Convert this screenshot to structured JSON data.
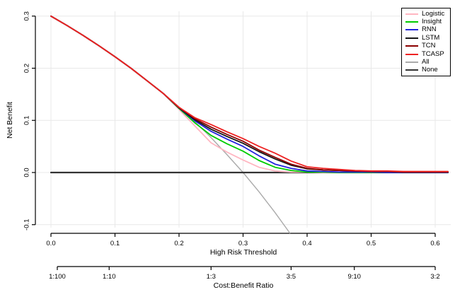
{
  "figure": {
    "background": "#ffffff",
    "grid_color": "#e8e8e8",
    "axis_color": "#000000"
  },
  "chart_data": {
    "type": "line",
    "title": "",
    "xlabel": "High Risk Threshold",
    "ylabel": "Net Benefit",
    "xlim": [
      0,
      0.62
    ],
    "ylim": [
      -0.116,
      0.316
    ],
    "grid": true,
    "legend_position": "top-right",
    "x_ticks": [
      {
        "label": "0.0",
        "value": 0.0
      },
      {
        "label": "0.1",
        "value": 0.1
      },
      {
        "label": "0.2",
        "value": 0.2
      },
      {
        "label": "0.3",
        "value": 0.3
      },
      {
        "label": "0.4",
        "value": 0.4
      },
      {
        "label": "0.5",
        "value": 0.5
      },
      {
        "label": "0.6",
        "value": 0.6
      }
    ],
    "y_ticks": [
      {
        "label": "0.3",
        "value": 0.3
      },
      {
        "label": "0.2",
        "value": 0.2
      },
      {
        "label": "0.1",
        "value": 0.1
      },
      {
        "label": "0.0",
        "value": 0.0
      },
      {
        "label": "-0.1",
        "value": -0.1
      }
    ],
    "secondary_axis": {
      "label": "Cost:Benefit Ratio",
      "ticks": [
        {
          "label": "1:100",
          "value": 0.0099
        },
        {
          "label": "1:10",
          "value": 0.0909
        },
        {
          "label": "1:3",
          "value": 0.25
        },
        {
          "label": "3:5",
          "value": 0.375
        },
        {
          "label": "9:10",
          "value": 0.4737
        },
        {
          "label": "3:2",
          "value": 0.6
        }
      ]
    },
    "series": [
      {
        "name": "Logistic",
        "color": "#FFB6C1",
        "width": 1.8,
        "x": [
          0,
          0.025,
          0.05,
          0.075,
          0.1,
          0.125,
          0.15,
          0.175,
          0.2,
          0.225,
          0.25,
          0.275,
          0.3,
          0.325,
          0.35,
          0.375,
          0.4,
          0.425,
          0.45,
          0.475,
          0.5,
          0.525,
          0.55,
          0.575,
          0.6,
          0.62
        ],
        "y": [
          0.3,
          0.282,
          0.263,
          0.243,
          0.222,
          0.2,
          0.176,
          0.152,
          0.121,
          0.089,
          0.057,
          0.039,
          0.024,
          0.01,
          0.003,
          0.001,
          0.001,
          0,
          0,
          0,
          0,
          0.001,
          0.002,
          0.001,
          0,
          0
        ]
      },
      {
        "name": "Insight",
        "color": "#00CC00",
        "width": 1.8,
        "x": [
          0,
          0.025,
          0.05,
          0.075,
          0.1,
          0.125,
          0.15,
          0.175,
          0.2,
          0.225,
          0.25,
          0.275,
          0.3,
          0.325,
          0.35,
          0.375,
          0.4,
          0.425,
          0.45,
          0.475,
          0.5,
          0.525,
          0.55,
          0.575,
          0.6,
          0.62
        ],
        "y": [
          0.3,
          0.282,
          0.263,
          0.243,
          0.222,
          0.2,
          0.176,
          0.152,
          0.123,
          0.095,
          0.071,
          0.055,
          0.041,
          0.023,
          0.01,
          0.004,
          0.001,
          0.001,
          0,
          0,
          0,
          0,
          0,
          0,
          0,
          0
        ]
      },
      {
        "name": "RNN",
        "color": "#2222DD",
        "width": 1.8,
        "x": [
          0,
          0.025,
          0.05,
          0.075,
          0.1,
          0.125,
          0.15,
          0.175,
          0.2,
          0.225,
          0.25,
          0.275,
          0.3,
          0.325,
          0.35,
          0.375,
          0.4,
          0.425,
          0.45,
          0.475,
          0.5,
          0.525,
          0.55,
          0.575,
          0.6,
          0.62
        ],
        "y": [
          0.3,
          0.282,
          0.263,
          0.243,
          0.222,
          0.2,
          0.176,
          0.152,
          0.124,
          0.099,
          0.079,
          0.064,
          0.05,
          0.032,
          0.016,
          0.008,
          0.003,
          0.002,
          0.001,
          0.001,
          0.001,
          0,
          0,
          0,
          0,
          0
        ]
      },
      {
        "name": "LSTM",
        "color": "#151515",
        "width": 1.8,
        "x": [
          0,
          0.025,
          0.05,
          0.075,
          0.1,
          0.125,
          0.15,
          0.175,
          0.2,
          0.225,
          0.25,
          0.275,
          0.3,
          0.325,
          0.35,
          0.375,
          0.4,
          0.425,
          0.45,
          0.475,
          0.5,
          0.525,
          0.55,
          0.575,
          0.6,
          0.62
        ],
        "y": [
          0.3,
          0.282,
          0.263,
          0.243,
          0.222,
          0.2,
          0.176,
          0.152,
          0.124,
          0.101,
          0.083,
          0.069,
          0.056,
          0.04,
          0.026,
          0.014,
          0.007,
          0.005,
          0.004,
          0.003,
          0.002,
          0.002,
          0.001,
          0.001,
          0.001,
          0.001
        ]
      },
      {
        "name": "TCN",
        "color": "#8B0000",
        "width": 1.8,
        "x": [
          0,
          0.025,
          0.05,
          0.075,
          0.1,
          0.125,
          0.15,
          0.175,
          0.2,
          0.225,
          0.25,
          0.275,
          0.3,
          0.325,
          0.35,
          0.375,
          0.4,
          0.425,
          0.45,
          0.475,
          0.5,
          0.525,
          0.55,
          0.575,
          0.6,
          0.62
        ],
        "y": [
          0.3,
          0.282,
          0.263,
          0.243,
          0.222,
          0.2,
          0.176,
          0.152,
          0.125,
          0.103,
          0.087,
          0.073,
          0.06,
          0.043,
          0.029,
          0.016,
          0.008,
          0.005,
          0.004,
          0.003,
          0.002,
          0.002,
          0.001,
          0.001,
          0.001,
          0.001
        ]
      },
      {
        "name": "TCASP",
        "color": "#EE2222",
        "width": 1.8,
        "x": [
          0,
          0.025,
          0.05,
          0.075,
          0.1,
          0.125,
          0.15,
          0.175,
          0.2,
          0.225,
          0.25,
          0.275,
          0.3,
          0.325,
          0.35,
          0.375,
          0.4,
          0.425,
          0.45,
          0.475,
          0.5,
          0.525,
          0.55,
          0.575,
          0.6,
          0.62
        ],
        "y": [
          0.3,
          0.282,
          0.263,
          0.243,
          0.222,
          0.2,
          0.176,
          0.152,
          0.125,
          0.105,
          0.092,
          0.078,
          0.065,
          0.05,
          0.037,
          0.022,
          0.011,
          0.008,
          0.006,
          0.004,
          0.003,
          0.003,
          0.002,
          0.002,
          0.002,
          0.002
        ]
      },
      {
        "name": "All",
        "color": "#AAAAAA",
        "width": 1.4,
        "x": [
          0,
          0.025,
          0.05,
          0.075,
          0.1,
          0.125,
          0.15,
          0.175,
          0.2,
          0.225,
          0.25,
          0.275,
          0.3,
          0.325,
          0.35,
          0.373
        ],
        "y": [
          0.3,
          0.282,
          0.263,
          0.243,
          0.222,
          0.2,
          0.176,
          0.152,
          0.125,
          0.097,
          0.067,
          0.034,
          0,
          -0.037,
          -0.077,
          -0.116
        ]
      },
      {
        "name": "None",
        "color": "#333333",
        "width": 2.2,
        "x": [
          0,
          0.62
        ],
        "y": [
          0,
          0
        ]
      }
    ]
  }
}
